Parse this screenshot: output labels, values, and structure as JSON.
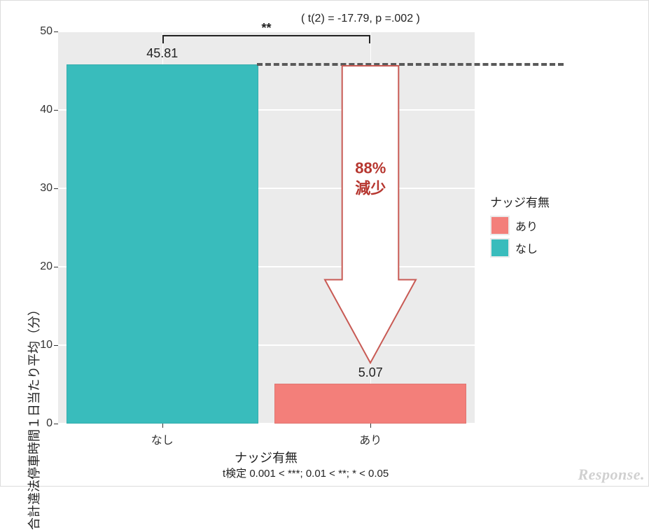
{
  "chart": {
    "type": "bar",
    "stat_note": "( t(2) = -17.79, p =.002 )",
    "x_axis_title": "ナッジ有無",
    "y_axis_title": "合計違法停車時間１日当たり平均（分）",
    "footnote": "t検定 0.001 < ***; 0.01 < **; * < 0.05",
    "background_color": "#ffffff",
    "panel_color": "#ebebeb",
    "grid_color": "#ffffff",
    "ylim": [
      0,
      50
    ],
    "ytick_step": 10,
    "yticks": [
      0,
      10,
      20,
      30,
      40,
      50
    ],
    "categories": [
      "なし",
      "あり"
    ],
    "values": [
      45.81,
      5.07
    ],
    "bar_colors": [
      "#39bcbc",
      "#f37f7a"
    ],
    "bar_width": 0.92,
    "value_labels": [
      "45.81",
      "5.07"
    ],
    "label_fontsize": 18,
    "tick_fontsize": 16,
    "axis_title_fontsize": 18,
    "sig_stars": "**",
    "dash_color": "#5a5a5a",
    "arrow": {
      "text_line1": "88%",
      "text_line2": "減少",
      "text_color": "#b6362f",
      "fill": "#ffffff",
      "stroke": "#c85a54",
      "fontsize": 22
    }
  },
  "legend": {
    "title": "ナッジ有無",
    "items": [
      {
        "label": "あり",
        "color": "#f37f7a"
      },
      {
        "label": "なし",
        "color": "#39bcbc"
      }
    ]
  },
  "watermark": "Response."
}
